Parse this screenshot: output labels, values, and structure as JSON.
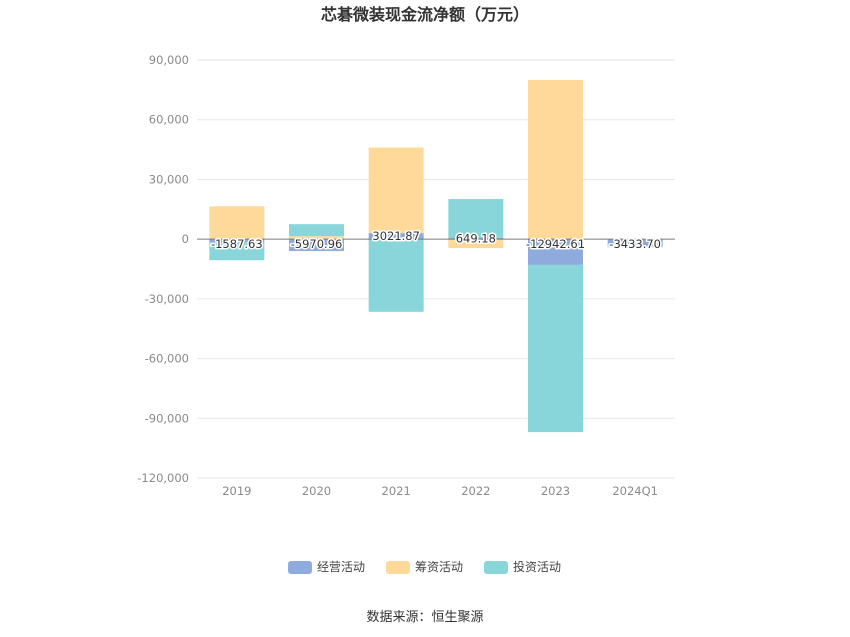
{
  "chart_data": {
    "type": "bar",
    "stacked": true,
    "title": "芯碁微装现金流净额（万元）",
    "xlabel": "",
    "ylabel": "",
    "categories": [
      "2019",
      "2020",
      "2021",
      "2022",
      "2023",
      "2024Q1"
    ],
    "ylim": [
      -120000,
      90000
    ],
    "yticks": [
      90000,
      60000,
      30000,
      0,
      -30000,
      -60000,
      -90000,
      -120000
    ],
    "ytick_labels": [
      "90,000",
      "60,000",
      "30,000",
      "0",
      "-30,000",
      "-60,000",
      "-90,000",
      "-120,000"
    ],
    "grid": true,
    "legend_position": "bottom",
    "series": [
      {
        "name": "经营活动",
        "color": "#8faadc",
        "values": [
          -1587.63,
          -5970.96,
          3021.87,
          649.18,
          -12942.61,
          -3433.7
        ],
        "labels": [
          "-1587.63",
          "-5970.96",
          "3021.87",
          "649.18",
          "-12942.61",
          "-3433.70"
        ]
      },
      {
        "name": "筹资活动",
        "color": "#ffd99a",
        "values": [
          16500,
          1500,
          43000,
          -4500,
          80000,
          -200
        ]
      },
      {
        "name": "投资活动",
        "color": "#88d6d9",
        "values": [
          -9000,
          6000,
          -36500,
          19500,
          -84000,
          -300
        ]
      }
    ],
    "source": "数据来源：恒生聚源"
  }
}
